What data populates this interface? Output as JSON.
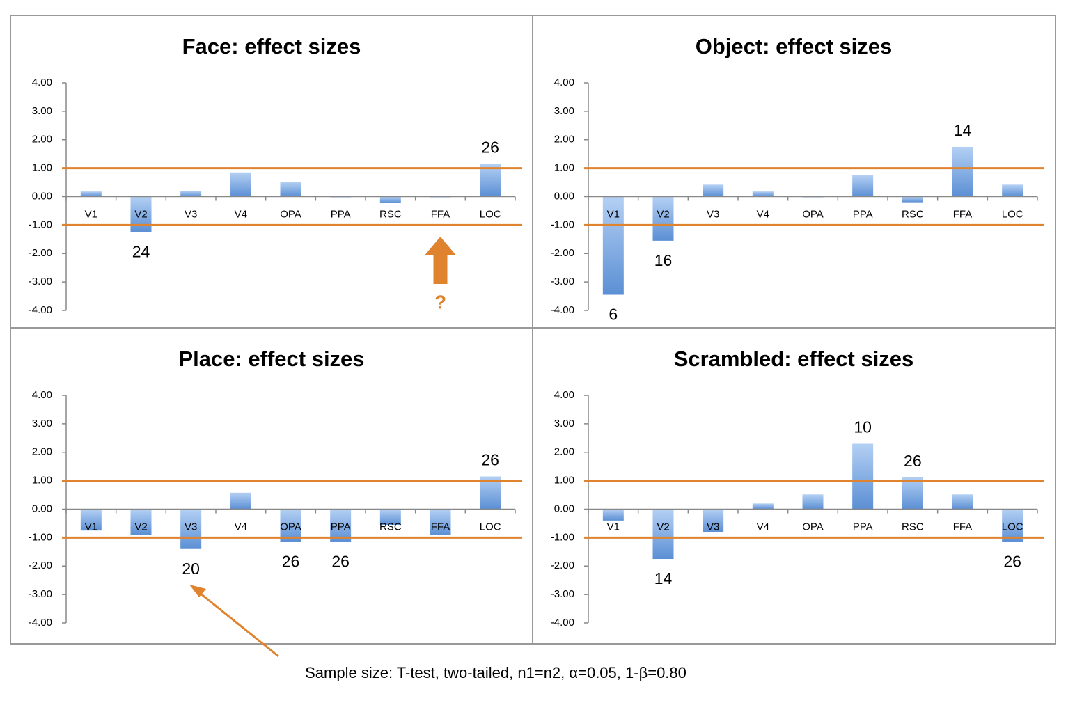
{
  "chart_data": [
    {
      "type": "bar",
      "title": "Face: effect sizes",
      "categories": [
        "V1",
        "V2",
        "V3",
        "V4",
        "OPA",
        "PPA",
        "RSC",
        "FFA",
        "LOC"
      ],
      "values": [
        0.18,
        -1.25,
        0.2,
        0.85,
        0.52,
        0.0,
        -0.22,
        0.0,
        1.15
      ],
      "sample_sizes": [
        null,
        24,
        null,
        null,
        null,
        null,
        null,
        null,
        26
      ],
      "annotation": "?",
      "color": "#5b8fd4",
      "threshold_lines": [
        1,
        -1
      ],
      "threshold_color": "#e0832f",
      "ylim": [
        -4,
        4
      ],
      "yticks": [
        {
          "value": 4,
          "label": "4.00"
        },
        {
          "value": 3,
          "label": "3.00"
        },
        {
          "value": 2,
          "label": "2.00"
        },
        {
          "value": 1,
          "label": "1.00"
        },
        {
          "value": 0,
          "label": "0.00"
        },
        {
          "value": -1,
          "label": "-1.00"
        },
        {
          "value": -2,
          "label": "-2.00"
        },
        {
          "value": -3,
          "label": "-3.00"
        },
        {
          "value": -4,
          "label": "-4.00"
        }
      ]
    },
    {
      "type": "bar",
      "title": "Object: effect sizes",
      "categories": [
        "V1",
        "V2",
        "V3",
        "V4",
        "OPA",
        "PPA",
        "RSC",
        "FFA",
        "LOC"
      ],
      "values": [
        -3.45,
        -1.55,
        0.42,
        0.18,
        0.0,
        0.75,
        -0.2,
        1.75,
        0.42
      ],
      "sample_sizes": [
        6,
        16,
        null,
        null,
        null,
        null,
        null,
        14,
        null
      ],
      "color": "#5b8fd4",
      "threshold_lines": [
        1,
        -1
      ],
      "threshold_color": "#e0832f",
      "ylim": [
        -4,
        4
      ],
      "yticks": [
        {
          "value": 4,
          "label": "4.00"
        },
        {
          "value": 3,
          "label": "3.00"
        },
        {
          "value": 2,
          "label": "2.00"
        },
        {
          "value": 1,
          "label": "1.00"
        },
        {
          "value": 0,
          "label": "0.00"
        },
        {
          "value": -1,
          "label": "-1.00"
        },
        {
          "value": -2,
          "label": "-2.00"
        },
        {
          "value": -3,
          "label": "-3.00"
        },
        {
          "value": -4,
          "label": "-4.00"
        }
      ]
    },
    {
      "type": "bar",
      "title": "Place: effect sizes",
      "categories": [
        "V1",
        "V2",
        "V3",
        "V4",
        "OPA",
        "PPA",
        "RSC",
        "FFA",
        "LOC"
      ],
      "values": [
        -0.75,
        -0.9,
        -1.4,
        0.58,
        -1.15,
        -1.15,
        -0.55,
        -0.9,
        1.15
      ],
      "sample_sizes": [
        null,
        null,
        20,
        null,
        26,
        26,
        null,
        null,
        26
      ],
      "color": "#5b8fd4",
      "threshold_lines": [
        1,
        -1
      ],
      "threshold_color": "#e0832f",
      "ylim": [
        -4,
        4
      ],
      "yticks": [
        {
          "value": 4,
          "label": "4.00"
        },
        {
          "value": 3,
          "label": "3.00"
        },
        {
          "value": 2,
          "label": "2.00"
        },
        {
          "value": 1,
          "label": "1.00"
        },
        {
          "value": 0,
          "label": "0.00"
        },
        {
          "value": -1,
          "label": "-1.00"
        },
        {
          "value": -2,
          "label": "-2.00"
        },
        {
          "value": -3,
          "label": "-3.00"
        },
        {
          "value": -4,
          "label": "-4.00"
        }
      ]
    },
    {
      "type": "bar",
      "title": "Scrambled: effect sizes",
      "categories": [
        "V1",
        "V2",
        "V3",
        "V4",
        "OPA",
        "PPA",
        "RSC",
        "FFA",
        "LOC"
      ],
      "values": [
        -0.4,
        -1.75,
        -0.8,
        0.2,
        0.52,
        2.3,
        1.12,
        0.52,
        -1.15
      ],
      "sample_sizes": [
        null,
        14,
        null,
        null,
        null,
        10,
        26,
        null,
        26
      ],
      "color": "#5b8fd4",
      "threshold_lines": [
        1,
        -1
      ],
      "threshold_color": "#e0832f",
      "ylim": [
        -4,
        4
      ],
      "yticks": [
        {
          "value": 4,
          "label": "4.00"
        },
        {
          "value": 3,
          "label": "3.00"
        },
        {
          "value": 2,
          "label": "2.00"
        },
        {
          "value": 1,
          "label": "1.00"
        },
        {
          "value": 0,
          "label": "0.00"
        },
        {
          "value": -1,
          "label": "-1.00"
        },
        {
          "value": -2,
          "label": "-2.00"
        },
        {
          "value": -3,
          "label": "-3.00"
        },
        {
          "value": -4,
          "label": "-4.00"
        }
      ]
    }
  ],
  "note": "Sample size: T-test, two-tailed, n1=n2, α=0.05, 1-β=0.80"
}
